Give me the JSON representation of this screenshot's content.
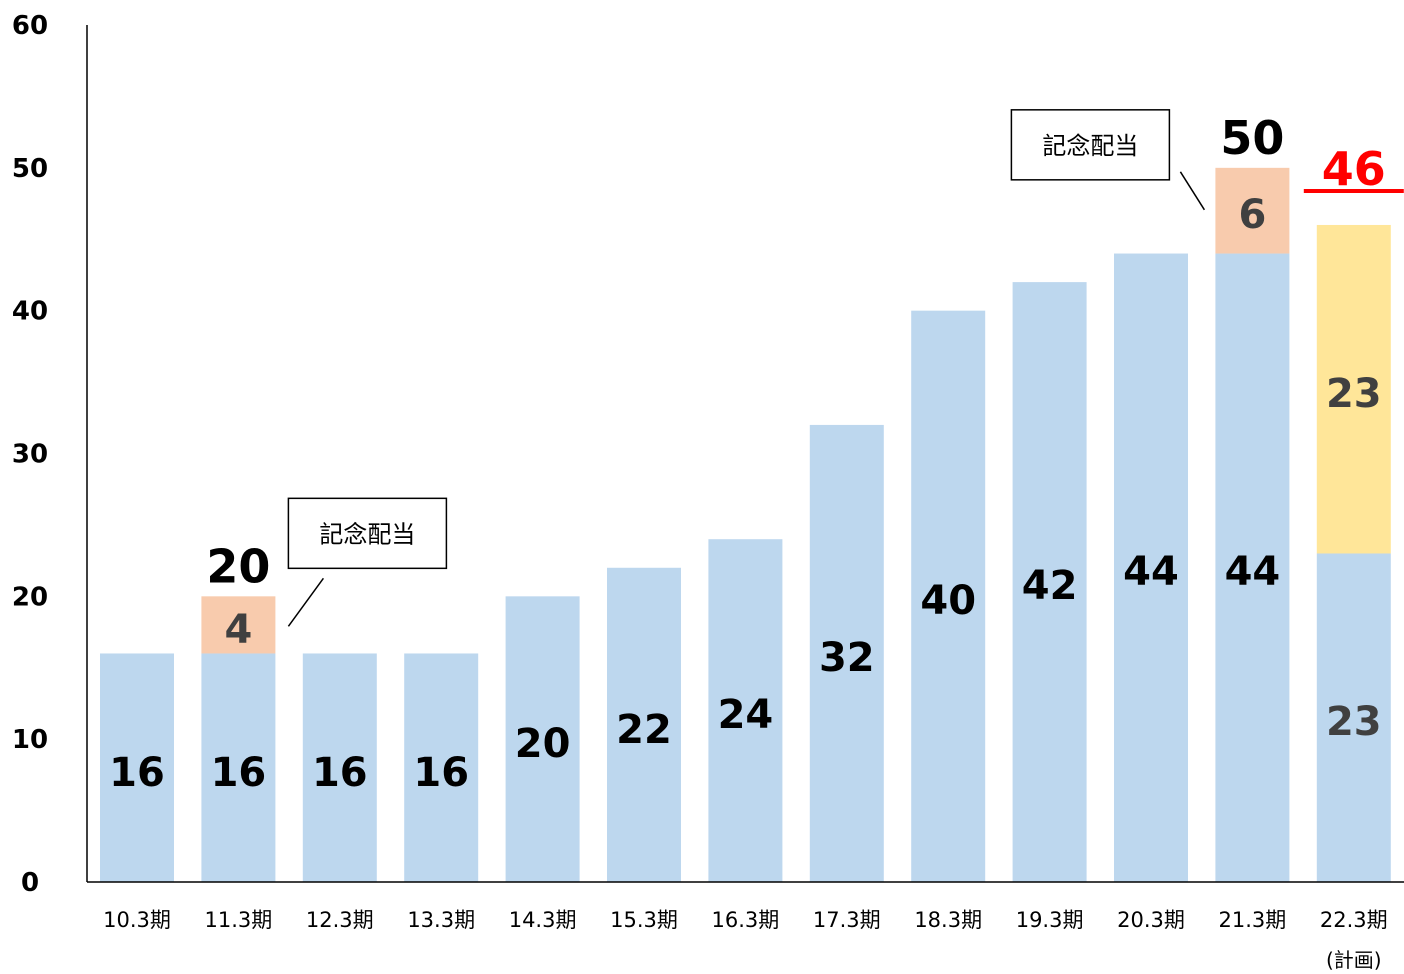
{
  "chart_data": {
    "type": "bar",
    "stacked": true,
    "categories": [
      "10.3期",
      "11.3期",
      "12.3期",
      "13.3期",
      "14.3期",
      "15.3期",
      "16.3期",
      "17.3期",
      "18.3期",
      "19.3期",
      "20.3期",
      "21.3期",
      "22.3期"
    ],
    "category_sublabels": [
      "",
      "",
      "",
      "",
      "",
      "",
      "",
      "",
      "",
      "",
      "",
      "",
      "(計画)"
    ],
    "series": [
      {
        "values": [
          16,
          16,
          16,
          16,
          20,
          22,
          24,
          32,
          40,
          42,
          44,
          44,
          23
        ],
        "color": "#bdd7ee"
      },
      {
        "values": [
          0,
          4,
          0,
          0,
          0,
          0,
          0,
          0,
          0,
          0,
          0,
          6,
          0
        ],
        "color": "#f8cbad"
      },
      {
        "values": [
          0,
          0,
          0,
          0,
          0,
          0,
          0,
          0,
          0,
          0,
          0,
          0,
          23
        ],
        "color": "#ffe699"
      }
    ],
    "totals": [
      {
        "category_index": 1,
        "label": "20",
        "color": "#000000"
      },
      {
        "category_index": 11,
        "label": "50",
        "color": "#000000"
      },
      {
        "category_index": 12,
        "label": "46",
        "color": "#ff0000",
        "underline": true
      }
    ],
    "annotations": [
      {
        "text": "記念配当",
        "target_category_index": 1
      },
      {
        "text": "記念配当",
        "target_category_index": 11
      }
    ],
    "y_ticks": [
      0,
      10,
      20,
      30,
      40,
      50,
      60
    ],
    "ylim": [
      0,
      60
    ],
    "grid": false,
    "title": "",
    "xlabel": "",
    "ylabel": ""
  }
}
